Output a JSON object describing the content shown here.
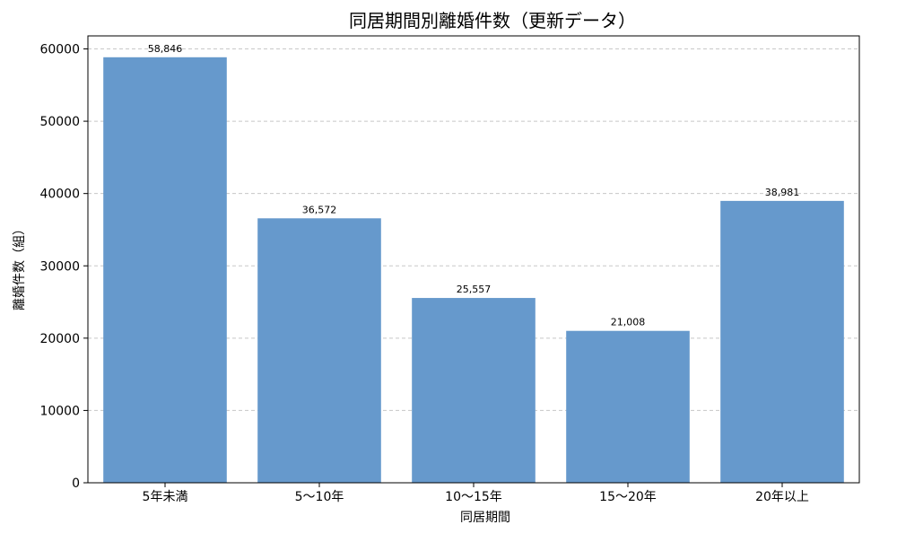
{
  "chart_data": {
    "type": "bar",
    "title": "同居期間別離婚件数（更新データ）",
    "xlabel": "同居期間",
    "ylabel": "離婚件数（組）",
    "categories": [
      "5年未満",
      "5〜10年",
      "10〜15年",
      "15〜20年",
      "20年以上"
    ],
    "values": [
      58846,
      36572,
      25557,
      21008,
      38981
    ],
    "value_labels": [
      "58,846",
      "36,572",
      "25,557",
      "21,008",
      "38,981"
    ],
    "ylim": [
      0,
      61800
    ],
    "yticks": [
      0,
      10000,
      20000,
      30000,
      40000,
      50000,
      60000
    ],
    "ytick_labels": [
      "0",
      "10000",
      "20000",
      "30000",
      "40000",
      "50000",
      "60000"
    ],
    "grid": {
      "axis": "y",
      "style": "dashed"
    },
    "bar_color": "#6699cc",
    "grid_color": "#c8c8c8"
  }
}
